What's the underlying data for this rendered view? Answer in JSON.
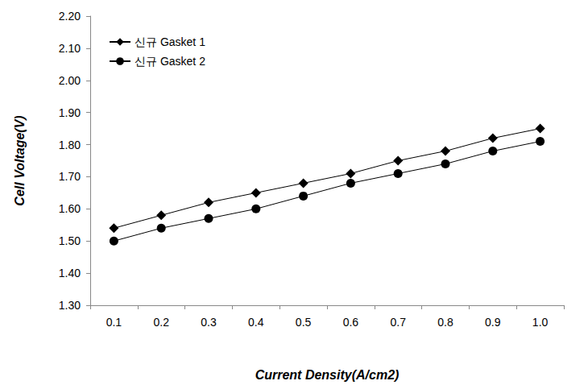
{
  "chart_data": {
    "type": "line",
    "x_label": "Current Density(A/cm2)",
    "y_label": "Cell Voltage(V)",
    "categories": [
      "0.1",
      "0.2",
      "0.3",
      "0.4",
      "0.5",
      "0.6",
      "0.7",
      "0.8",
      "0.9",
      "1.0"
    ],
    "series": [
      {
        "name": "신규 Gasket 1",
        "color": "#000000",
        "marker": "diamond",
        "values": [
          1.54,
          1.58,
          1.62,
          1.65,
          1.68,
          1.71,
          1.75,
          1.78,
          1.82,
          1.85
        ]
      },
      {
        "name": "신규 Gasket 2",
        "color": "#000000",
        "marker": "circle",
        "values": [
          1.5,
          1.54,
          1.57,
          1.6,
          1.64,
          1.68,
          1.71,
          1.74,
          1.78,
          1.81
        ]
      }
    ],
    "ylim": [
      1.3,
      2.2
    ],
    "yticks": [
      {
        "value": 1.3,
        "label": "1.30"
      },
      {
        "value": 1.4,
        "label": "1.40"
      },
      {
        "value": 1.5,
        "label": "1.50"
      },
      {
        "value": 1.6,
        "label": "1.60"
      },
      {
        "value": 1.7,
        "label": "1.70"
      },
      {
        "value": 1.8,
        "label": "1.80"
      },
      {
        "value": 1.9,
        "label": "1.90"
      },
      {
        "value": 2.0,
        "label": "2.00"
      },
      {
        "value": 2.1,
        "label": "2.10"
      },
      {
        "value": 2.2,
        "label": "2.20"
      }
    ],
    "grid": false,
    "legend": "upper left"
  }
}
